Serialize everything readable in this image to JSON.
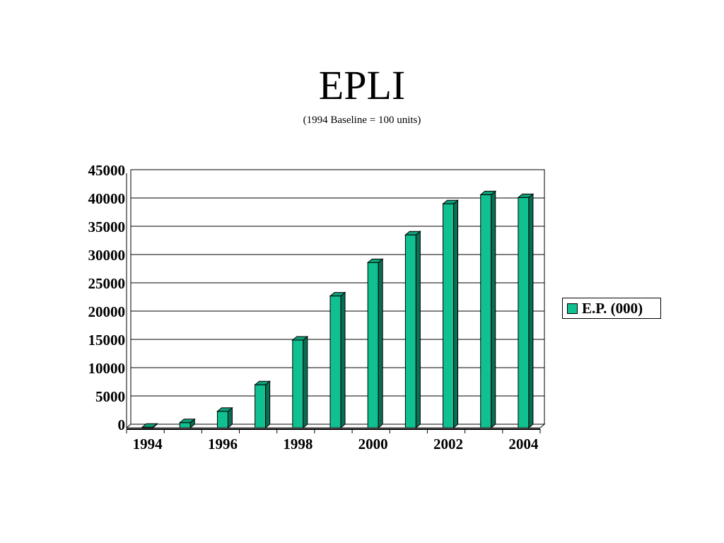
{
  "slide": {
    "title": "EPLI",
    "subtitle": "(1994 Baseline = 100 units)"
  },
  "colors": {
    "bar_front": "#10c090",
    "bar_side": "#0a6e52",
    "bar_top": "#0f9e77",
    "outline": "#000000",
    "gridline": "#000000"
  },
  "chart_data": {
    "type": "bar",
    "categories": [
      "1994",
      "1995",
      "1996",
      "1997",
      "1998",
      "1999",
      "2000",
      "2001",
      "2002",
      "2003",
      "2004"
    ],
    "x_tick_labels": [
      "1994",
      "1996",
      "1998",
      "2000",
      "2002",
      "2004"
    ],
    "series": [
      {
        "name": "E.P. (000)",
        "values": [
          100,
          900,
          2900,
          7600,
          15500,
          23300,
          29200,
          34100,
          39600,
          41200,
          40700
        ]
      }
    ],
    "ylim": [
      0,
      45000
    ],
    "y_ticks": [
      "0",
      "5000",
      "10000",
      "15000",
      "20000",
      "25000",
      "30000",
      "35000",
      "40000",
      "45000"
    ],
    "grid": true,
    "legend_position": "right",
    "style": "3d-column"
  }
}
